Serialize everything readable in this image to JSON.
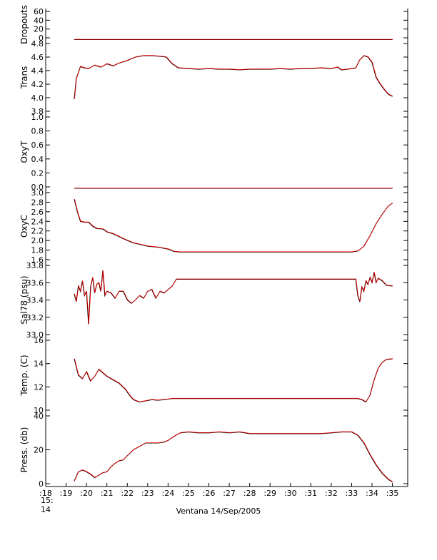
{
  "footer": {
    "caption": "Ventana 14/Sep/2005",
    "start_date_line1": "15:",
    "start_date_line2": "14"
  },
  "colors": {
    "axis": "#000000",
    "series_primary": "#ff0000",
    "series_secondary": "#000000"
  },
  "chart_data": [
    {
      "type": "line",
      "ylabel": "Dropouts",
      "ylim": [
        0,
        60
      ],
      "yticks": [
        0,
        20,
        40,
        60
      ],
      "grid": false,
      "series": [
        {
          "x": [
            19.4,
            20,
            21,
            22,
            23,
            24,
            25,
            26,
            27,
            28,
            29,
            30,
            31,
            32,
            33,
            34,
            35
          ],
          "y": [
            -4,
            -4,
            -4,
            -4,
            -4,
            -4,
            -4,
            -4,
            -4,
            -4,
            -4,
            -4,
            -4,
            -4,
            -4,
            -4,
            -4
          ]
        }
      ]
    },
    {
      "type": "line",
      "ylabel": "Trans",
      "ylim": [
        3.8,
        4.8
      ],
      "yticks": [
        3.8,
        4.0,
        4.2,
        4.4,
        4.6,
        4.8
      ],
      "grid": false,
      "series": [
        {
          "x": [
            19.4,
            19.5,
            19.7,
            19.9,
            20.1,
            20.4,
            20.7,
            21.0,
            21.3,
            21.6,
            22.0,
            22.4,
            22.8,
            23.2,
            23.6,
            23.9,
            24.2,
            24.5,
            25.0,
            25.5,
            26.0,
            26.5,
            27.0,
            27.5,
            28.0,
            28.5,
            29.0,
            29.5,
            30.0,
            30.5,
            31.0,
            31.5,
            32.0,
            32.3,
            32.5,
            32.8,
            33.0,
            33.2,
            33.4,
            33.6,
            33.8,
            34.0,
            34.2,
            34.4,
            34.6,
            34.8,
            35.0
          ],
          "y": [
            3.98,
            4.28,
            4.46,
            4.44,
            4.43,
            4.48,
            4.45,
            4.5,
            4.47,
            4.51,
            4.55,
            4.6,
            4.62,
            4.62,
            4.61,
            4.6,
            4.5,
            4.44,
            4.43,
            4.42,
            4.43,
            4.42,
            4.42,
            4.41,
            4.42,
            4.42,
            4.42,
            4.43,
            4.42,
            4.43,
            4.43,
            4.44,
            4.43,
            4.45,
            4.41,
            4.42,
            4.43,
            4.44,
            4.56,
            4.62,
            4.6,
            4.52,
            4.3,
            4.2,
            4.12,
            4.05,
            4.02
          ]
        }
      ]
    },
    {
      "type": "line",
      "ylabel": "OxyT",
      "ylim": [
        0.0,
        1.0
      ],
      "yticks": [
        0.0,
        0.2,
        0.4,
        0.6,
        0.8,
        1.0
      ],
      "grid": false,
      "series": [
        {
          "x": [
            19.4,
            35.0
          ],
          "y": [
            -0.02,
            -0.02
          ]
        }
      ]
    },
    {
      "type": "line",
      "ylabel": "OxyC",
      "ylim": [
        1.6,
        3.0
      ],
      "yticks": [
        1.6,
        1.8,
        2.0,
        2.2,
        2.4,
        2.6,
        2.8,
        3.0
      ],
      "grid": false,
      "series": [
        {
          "x": [
            19.4,
            19.55,
            19.7,
            19.9,
            20.1,
            20.3,
            20.5,
            20.8,
            21.0,
            21.3,
            21.6,
            22.0,
            22.3,
            22.6,
            23.0,
            23.5,
            24.0,
            24.3,
            24.6,
            25.0,
            26.0,
            27.0,
            28.0,
            29.0,
            30.0,
            31.0,
            32.0,
            33.0,
            33.3,
            33.6,
            33.9,
            34.2,
            34.5,
            34.8,
            35.0
          ],
          "y": [
            2.86,
            2.6,
            2.4,
            2.38,
            2.38,
            2.3,
            2.25,
            2.24,
            2.18,
            2.14,
            2.08,
            2.0,
            1.95,
            1.92,
            1.88,
            1.86,
            1.82,
            1.77,
            1.76,
            1.76,
            1.76,
            1.76,
            1.76,
            1.76,
            1.76,
            1.76,
            1.76,
            1.76,
            1.78,
            1.88,
            2.1,
            2.35,
            2.55,
            2.72,
            2.78
          ]
        }
      ]
    },
    {
      "type": "line",
      "ylabel": "Sal78 (psu)",
      "ylim": [
        33.0,
        33.8
      ],
      "yticks": [
        33.0,
        33.2,
        33.4,
        33.6,
        33.8
      ],
      "grid": false,
      "series": [
        {
          "x": [
            19.4,
            19.5,
            19.6,
            19.7,
            19.8,
            19.9,
            20.0,
            20.1,
            20.2,
            20.3,
            20.4,
            20.5,
            20.6,
            20.7,
            20.8,
            20.9,
            21.0,
            21.2,
            21.4,
            21.6,
            21.8,
            22.0,
            22.2,
            22.4,
            22.6,
            22.8,
            23.0,
            23.2,
            23.4,
            23.6,
            23.8,
            24.0,
            24.2,
            24.4,
            25.0,
            26.0,
            27.0,
            28.0,
            29.0,
            30.0,
            31.0,
            32.0,
            33.0,
            33.2,
            33.3,
            33.4,
            33.5,
            33.6,
            33.7,
            33.8,
            33.9,
            34.0,
            34.1,
            34.2,
            34.3,
            34.5,
            34.7,
            35.0
          ],
          "y": [
            33.47,
            33.38,
            33.56,
            33.5,
            33.62,
            33.45,
            33.5,
            33.12,
            33.55,
            33.66,
            33.48,
            33.58,
            33.6,
            33.5,
            33.74,
            33.45,
            33.5,
            33.48,
            33.42,
            33.5,
            33.5,
            33.4,
            33.36,
            33.4,
            33.45,
            33.42,
            33.5,
            33.52,
            33.42,
            33.5,
            33.48,
            33.52,
            33.56,
            33.64,
            33.64,
            33.64,
            33.64,
            33.64,
            33.64,
            33.64,
            33.64,
            33.64,
            33.64,
            33.64,
            33.45,
            33.38,
            33.55,
            33.5,
            33.62,
            33.58,
            33.66,
            33.6,
            33.72,
            33.6,
            33.65,
            33.62,
            33.57,
            33.56
          ]
        }
      ]
    },
    {
      "type": "line",
      "ylabel": "Temp. (C)",
      "ylim": [
        10,
        16
      ],
      "yticks": [
        10,
        12,
        14,
        16
      ],
      "grid": false,
      "series": [
        {
          "x": [
            19.4,
            19.6,
            19.8,
            20.0,
            20.2,
            20.4,
            20.6,
            20.8,
            21.0,
            21.3,
            21.6,
            21.9,
            22.1,
            22.3,
            22.6,
            22.9,
            23.2,
            23.5,
            23.8,
            24.0,
            24.2,
            24.5,
            25.0,
            26.0,
            27.0,
            28.0,
            29.0,
            30.0,
            31.0,
            32.0,
            33.0,
            33.3,
            33.5,
            33.7,
            33.9,
            34.1,
            34.3,
            34.5,
            34.7,
            35.0
          ],
          "y": [
            14.4,
            13.0,
            12.7,
            13.3,
            12.5,
            12.9,
            13.5,
            13.2,
            12.9,
            12.6,
            12.3,
            11.8,
            11.3,
            10.9,
            10.7,
            10.8,
            10.9,
            10.85,
            10.9,
            10.95,
            11.0,
            11.0,
            11.0,
            11.0,
            11.0,
            11.0,
            11.0,
            11.0,
            11.0,
            11.0,
            11.0,
            11.0,
            10.9,
            10.7,
            11.3,
            12.6,
            13.6,
            14.1,
            14.35,
            14.4
          ]
        }
      ]
    },
    {
      "type": "line",
      "ylabel": "Press. (db)",
      "ylim": [
        0,
        40
      ],
      "yticks": [
        0,
        20,
        40
      ],
      "grid": false,
      "series": [
        {
          "x": [
            19.4,
            19.6,
            19.8,
            20.0,
            20.2,
            20.4,
            20.6,
            20.8,
            21.0,
            21.2,
            21.4,
            21.6,
            21.8,
            22.0,
            22.3,
            22.6,
            22.9,
            23.2,
            23.5,
            23.8,
            24.0,
            24.3,
            24.6,
            25.0,
            25.5,
            26.0,
            26.5,
            27.0,
            27.5,
            28.0,
            28.5,
            29.0,
            29.5,
            30.0,
            30.5,
            31.0,
            31.5,
            32.0,
            32.5,
            33.0,
            33.3,
            33.6,
            33.9,
            34.2,
            34.5,
            34.8,
            35.0
          ],
          "y": [
            1.5,
            7.0,
            8.0,
            7.0,
            5.5,
            3.5,
            5.0,
            6.5,
            7.0,
            10.0,
            12.0,
            13.5,
            14.0,
            16.5,
            20.0,
            22.0,
            24.0,
            24.0,
            24.0,
            24.5,
            25.5,
            28.0,
            30.0,
            30.5,
            30.0,
            30.0,
            30.5,
            30.0,
            30.5,
            29.5,
            29.5,
            29.5,
            29.5,
            29.5,
            29.5,
            29.5,
            29.5,
            30.0,
            30.5,
            30.5,
            28.5,
            24.0,
            17.0,
            11.0,
            6.0,
            2.5,
            1.0
          ]
        }
      ]
    }
  ],
  "x_axis": {
    "ticks": [
      18,
      19,
      20,
      21,
      22,
      23,
      24,
      25,
      26,
      27,
      28,
      29,
      30,
      31,
      32,
      33,
      34,
      35
    ],
    "tick_labels": [
      ":18",
      ":19",
      ":20",
      ":21",
      ":22",
      ":23",
      ":24",
      ":25",
      ":26",
      ":27",
      ":28",
      ":29",
      ":30",
      ":31",
      ":32",
      ":33",
      ":34",
      ":35"
    ],
    "xlim": [
      18,
      35.75
    ]
  }
}
